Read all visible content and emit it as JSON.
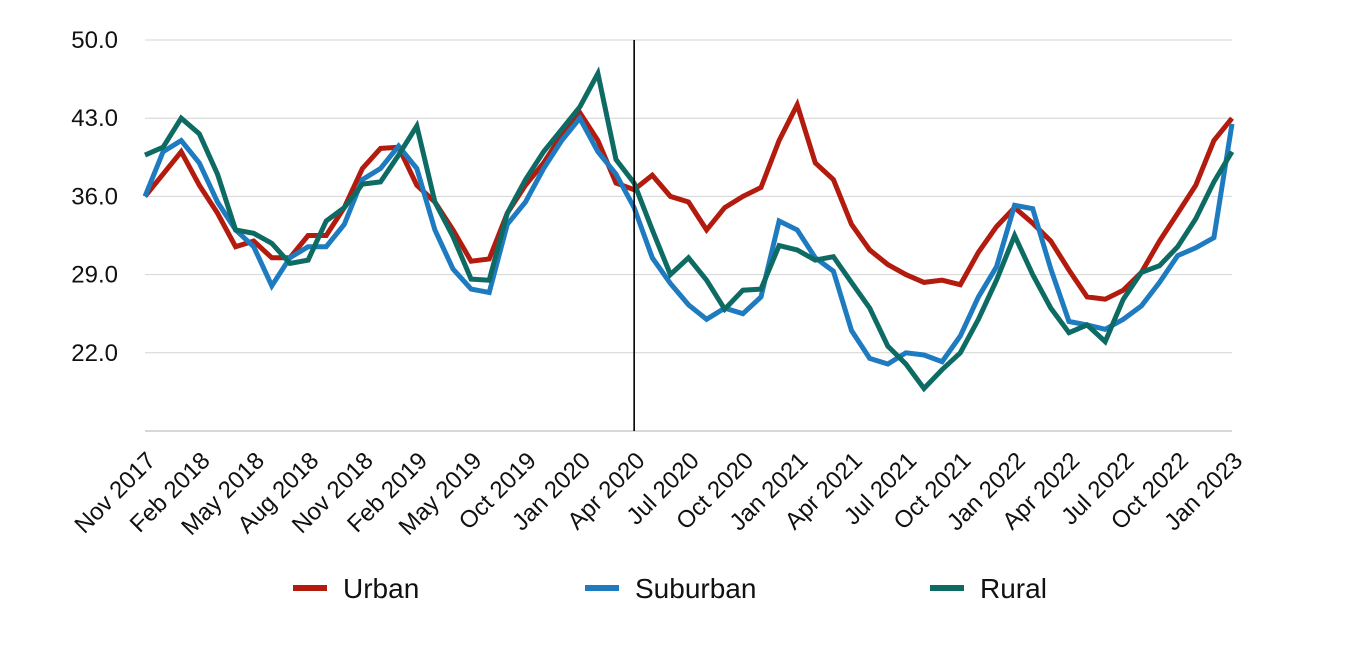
{
  "chart_data": {
    "type": "line",
    "title": "",
    "xlabel": "",
    "ylabel": "",
    "ylim": [
      15,
      50
    ],
    "y_ticks": [
      "50.0",
      "43.0",
      "36.0",
      "29.0",
      "22.0"
    ],
    "y_tick_values": [
      50,
      43,
      36,
      29,
      22
    ],
    "grid": true,
    "legend_position": "bottom",
    "x_tick_labels": [
      "Nov 2017",
      "Feb 2018",
      "May 2018",
      "Aug 2018",
      "Nov 2018",
      "Feb 2019",
      "May 2019",
      "Oct 2019",
      "Jan 2020",
      "Apr 2020",
      "Jul 2020",
      "Oct 2020",
      "Jan 2021",
      "Apr 2021",
      "Jul 2021",
      "Oct 2021",
      "Jan 2022",
      "Apr 2022",
      "Jul 2022",
      "Oct 2022",
      "Jan 2023"
    ],
    "x_tick_index": [
      0,
      3,
      6,
      9,
      12,
      15,
      18,
      21,
      24,
      27,
      30,
      33,
      36,
      39,
      42,
      45,
      48,
      51,
      54,
      57,
      60
    ],
    "event_line_index": 27,
    "series": [
      {
        "name": "Urban",
        "color": "#b31b0e",
        "values": [
          36.0,
          38.0,
          40.0,
          37.0,
          34.5,
          31.5,
          32.0,
          30.5,
          30.5,
          32.5,
          32.5,
          35.0,
          38.5,
          40.3,
          40.4,
          37.0,
          35.5,
          33.0,
          30.2,
          30.4,
          34.5,
          37.0,
          39.0,
          41.5,
          43.5,
          41.0,
          37.2,
          36.6,
          37.9,
          36.0,
          35.5,
          33.0,
          35.0,
          36.0,
          36.8,
          41.0,
          44.2,
          39.0,
          37.5,
          33.5,
          31.2,
          29.9,
          29.0,
          28.3,
          28.5,
          28.1,
          31.0,
          33.3,
          35.0,
          33.6,
          32.0,
          29.4,
          27.0,
          26.8,
          27.6,
          29.2,
          32.0,
          34.5,
          37.0,
          41.0,
          43.0
        ]
      },
      {
        "name": "Suburban",
        "color": "#1e7bc0",
        "values": [
          36.0,
          40.0,
          41.0,
          39.0,
          35.5,
          33.0,
          31.5,
          28.0,
          30.5,
          31.5,
          31.5,
          33.5,
          37.5,
          38.5,
          40.5,
          38.5,
          33.0,
          29.5,
          27.7,
          27.4,
          33.5,
          35.5,
          38.5,
          41.0,
          43.0,
          40.0,
          38.0,
          35.0,
          30.5,
          28.2,
          26.3,
          25.0,
          26.0,
          25.5,
          27.0,
          33.8,
          33.0,
          30.5,
          29.3,
          24.0,
          21.5,
          21.0,
          22.0,
          21.8,
          21.2,
          23.5,
          27.0,
          29.7,
          35.2,
          34.9,
          29.5,
          24.8,
          24.5,
          24.1,
          25.0,
          26.2,
          28.3,
          30.7,
          31.4,
          32.3,
          42.5
        ]
      },
      {
        "name": "Rural",
        "color": "#0e6b63",
        "values": [
          39.7,
          40.4,
          43.0,
          41.6,
          38.0,
          33.0,
          32.7,
          31.8,
          30.0,
          30.3,
          33.8,
          35.0,
          37.1,
          37.3,
          39.7,
          42.3,
          35.5,
          32.4,
          28.6,
          28.5,
          34.5,
          37.5,
          40.0,
          42.0,
          44.0,
          47.0,
          39.3,
          37.2,
          33.0,
          29.0,
          30.5,
          28.5,
          25.9,
          27.6,
          27.7,
          31.6,
          31.2,
          30.3,
          30.6,
          28.3,
          26.0,
          22.6,
          21.0,
          18.8,
          20.5,
          22.0,
          25.0,
          28.5,
          32.5,
          29.0,
          26.0,
          23.8,
          24.5,
          23.0,
          26.8,
          29.2,
          29.8,
          31.5,
          34.0,
          37.3,
          40.0
        ]
      }
    ]
  }
}
